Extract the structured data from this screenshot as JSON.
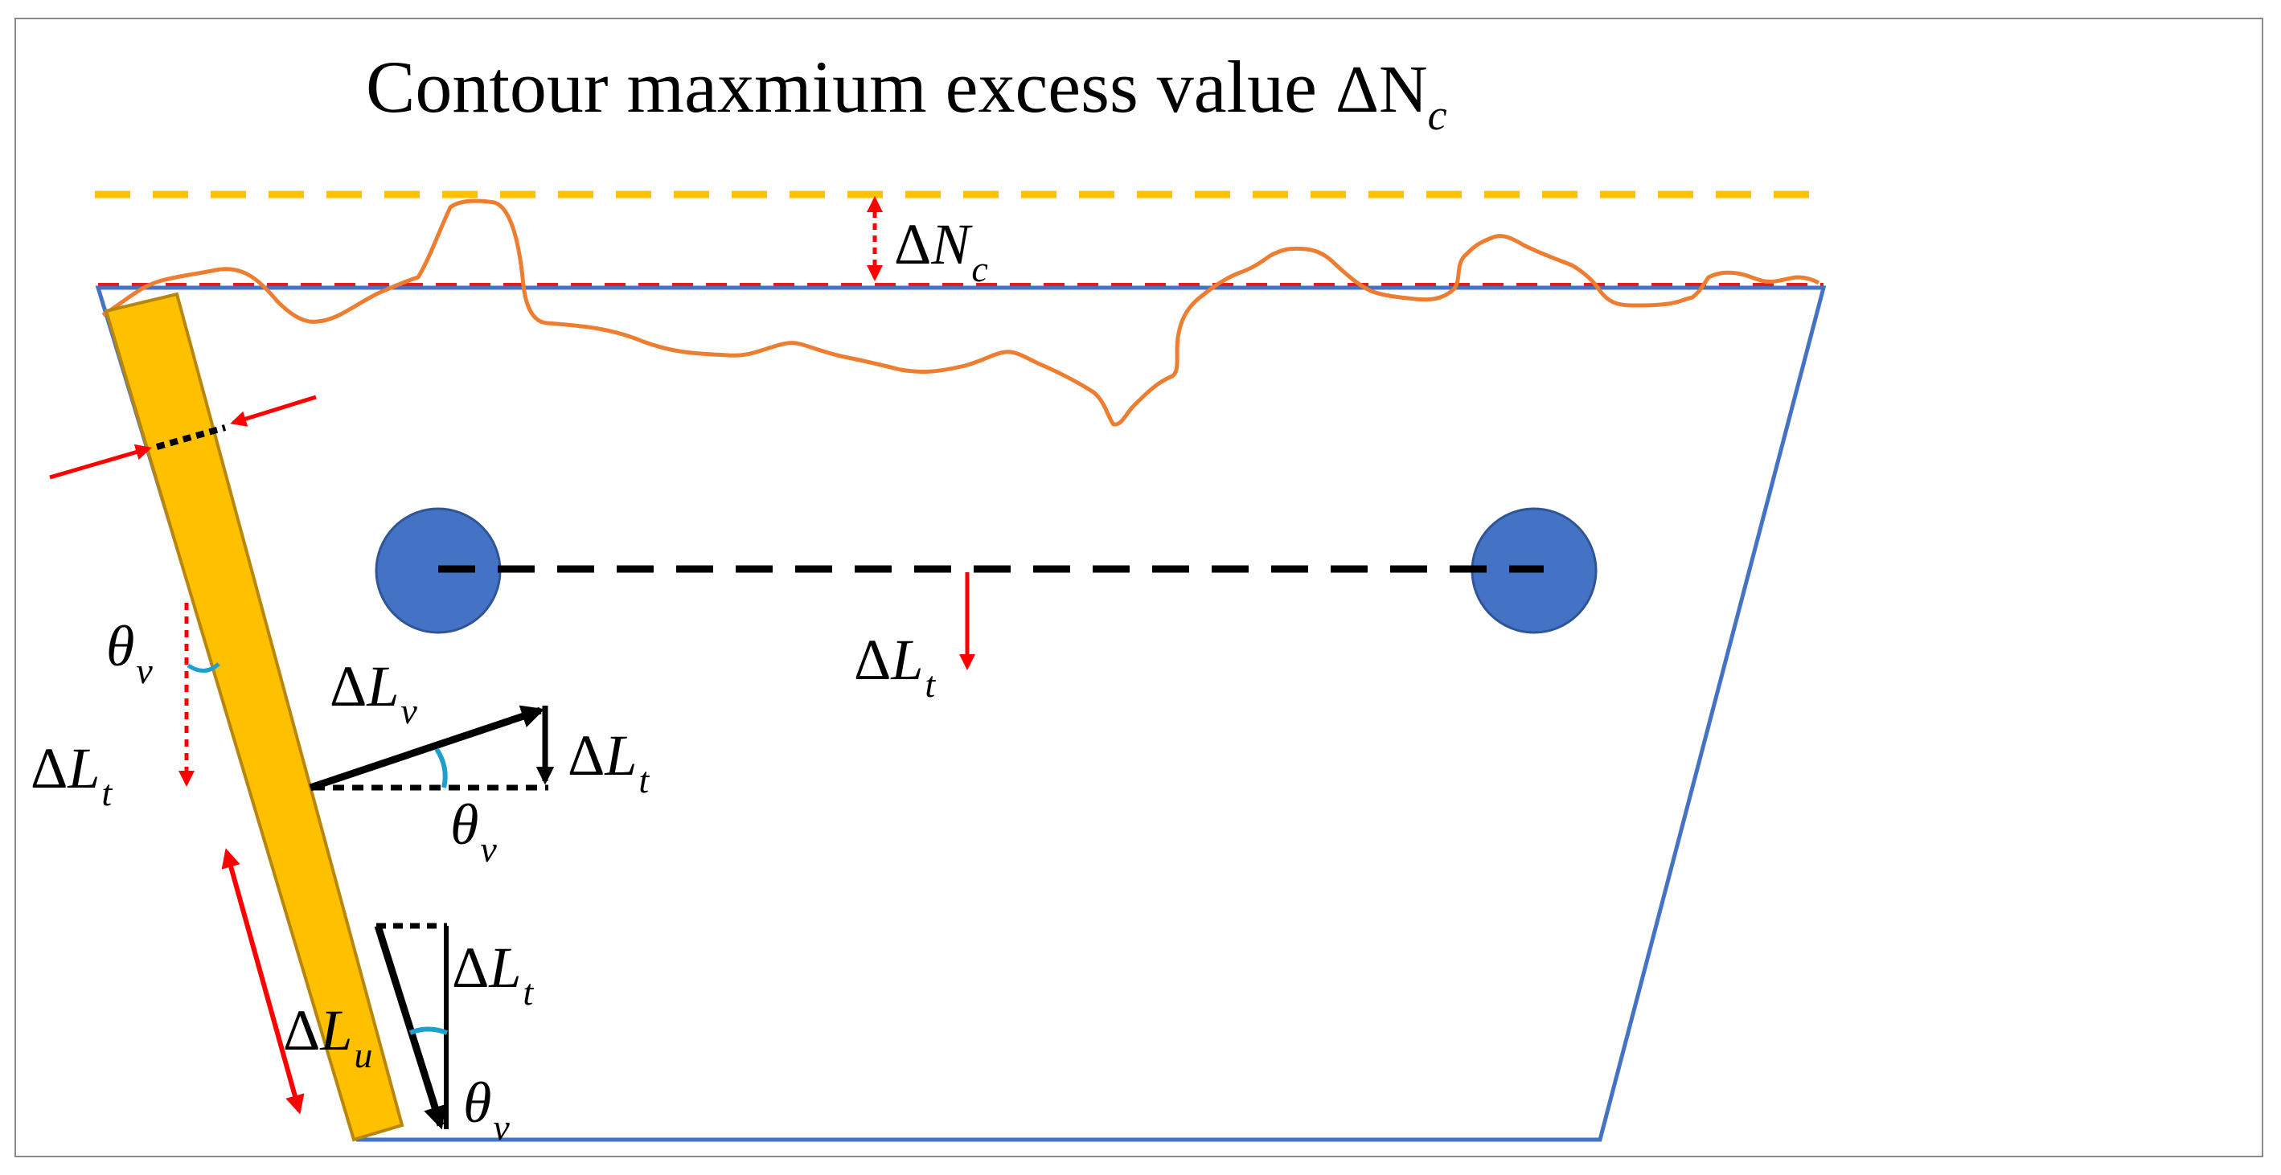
{
  "title": {
    "text": "Contour maxmium excess value",
    "symbol": "ΔN",
    "subscript": "c"
  },
  "labels": {
    "delta_nc": {
      "delta": "Δ",
      "var": "N",
      "sub": "c"
    },
    "delta_lt_center": {
      "delta": "Δ",
      "var": "L",
      "sub": "t"
    },
    "delta_lt_left": {
      "delta": "Δ",
      "var": "L",
      "sub": "t"
    },
    "delta_lt_mid": {
      "delta": "Δ",
      "var": "L",
      "sub": "t"
    },
    "delta_lt_low": {
      "delta": "Δ",
      "var": "L",
      "sub": "t"
    },
    "delta_lv": {
      "delta": "Δ",
      "var": "L",
      "sub": "v"
    },
    "delta_lu": {
      "delta": "Δ",
      "var": "L",
      "sub": "u"
    },
    "theta_left": {
      "var": "θ",
      "sub": "v"
    },
    "theta_mid": {
      "var": "θ",
      "sub": "v"
    },
    "theta_low": {
      "var": "θ",
      "sub": "v"
    }
  },
  "colors": {
    "outline_blue": "#4472c4",
    "circle_blue": "#4472c4",
    "contour_orange": "#ed7d31",
    "max_line_gold": "#ffc000",
    "bar_gold": "#ffc000",
    "bar_edge": "#b8860b",
    "arrow_red": "#ff0000",
    "dash_red": "#e02020",
    "angle_cyan": "#1f9fd0",
    "black": "#000000"
  }
}
